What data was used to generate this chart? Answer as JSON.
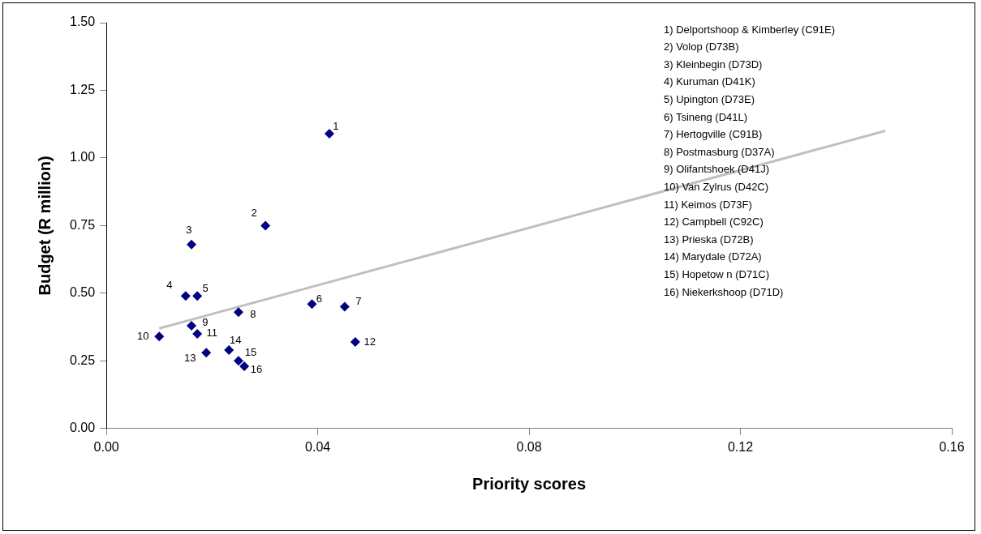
{
  "chart_data": {
    "type": "scatter",
    "xlabel": "Priority scores",
    "ylabel": "Budget (R million)",
    "xlim": [
      0,
      0.16
    ],
    "xticks": [
      {
        "value": 0,
        "label": "0.00"
      },
      {
        "value": 0.04,
        "label": "0.04"
      },
      {
        "value": 0.08,
        "label": "0.08"
      },
      {
        "value": 0.12,
        "label": "0.12"
      },
      {
        "value": 0.16,
        "label": "0.16"
      }
    ],
    "ylim": [
      0,
      1.5
    ],
    "yticks": [
      {
        "value": 0,
        "label": "0.00"
      },
      {
        "value": 0.25,
        "label": "0.25"
      },
      {
        "value": 0.5,
        "label": "0.50"
      },
      {
        "value": 0.75,
        "label": "0.75"
      },
      {
        "value": 1,
        "label": "1.00"
      },
      {
        "value": 1.25,
        "label": "1.25"
      },
      {
        "value": 1.5,
        "label": "1.50"
      }
    ],
    "grid": false,
    "legend": false,
    "marker": "diamond",
    "series": [
      {
        "color": "#000080",
        "x": [
          0.0422,
          0.0301,
          0.0161,
          0.015,
          0.0172,
          0.0389,
          0.0451,
          0.025,
          0.0161,
          0.01,
          0.0172,
          0.0471,
          0.0189,
          0.0232,
          0.025,
          0.0261
        ],
        "values": [
          1.09,
          0.75,
          0.68,
          0.49,
          0.49,
          0.46,
          0.45,
          0.43,
          0.38,
          0.34,
          0.35,
          0.32,
          0.28,
          0.29,
          0.25,
          0.23
        ]
      },
      {
        "type": "line",
        "color": "#c0c0c0",
        "marker": "none",
        "x": [
          0.01,
          0.1474
        ],
        "values": [
          0.37,
          1.1
        ]
      }
    ],
    "annotations": [
      {
        "text": "1",
        "x": 0.0422,
        "y": 1.09
      },
      {
        "text": "2",
        "x": 0.0301,
        "y": 0.75
      },
      {
        "text": "3",
        "x": 0.0161,
        "y": 0.68
      },
      {
        "text": "4",
        "x": 0.015,
        "y": 0.49
      },
      {
        "text": "5",
        "x": 0.0172,
        "y": 0.49
      },
      {
        "text": "6",
        "x": 0.0389,
        "y": 0.46
      },
      {
        "text": "7",
        "x": 0.0451,
        "y": 0.45
      },
      {
        "text": "8",
        "x": 0.025,
        "y": 0.43
      },
      {
        "text": "9",
        "x": 0.0161,
        "y": 0.38
      },
      {
        "text": "10",
        "x": 0.01,
        "y": 0.34
      },
      {
        "text": "11",
        "x": 0.0172,
        "y": 0.35
      },
      {
        "text": "12",
        "x": 0.0471,
        "y": 0.32
      },
      {
        "text": "13",
        "x": 0.0189,
        "y": 0.28
      },
      {
        "text": "14",
        "x": 0.0232,
        "y": 0.29
      },
      {
        "text": "15",
        "x": 0.025,
        "y": 0.25
      },
      {
        "text": "16",
        "x": 0.0261,
        "y": 0.23
      },
      "1) Delportshoop & Kimberley (C91E)",
      "2) Volop (D73B)",
      "3) Kleinbegin (D73D)",
      "4) Kuruman (D41K)",
      "5) Upington (D73E)",
      "6) Tsineng (D41L)",
      "7) Hertogville (C91B)",
      "8) Postmasburg (D37A)",
      "9) Olifantshoek (D41J)",
      "10) Van Zylrus (D42C)",
      "11) Keimos (D73F)",
      "12) Campbell (C92C)",
      "13) Prieska (D72B)",
      "14) Marydale (D72A)",
      "15) Hopetow n (D71C)",
      "16) Niekerkshoop (D71D)"
    ]
  }
}
